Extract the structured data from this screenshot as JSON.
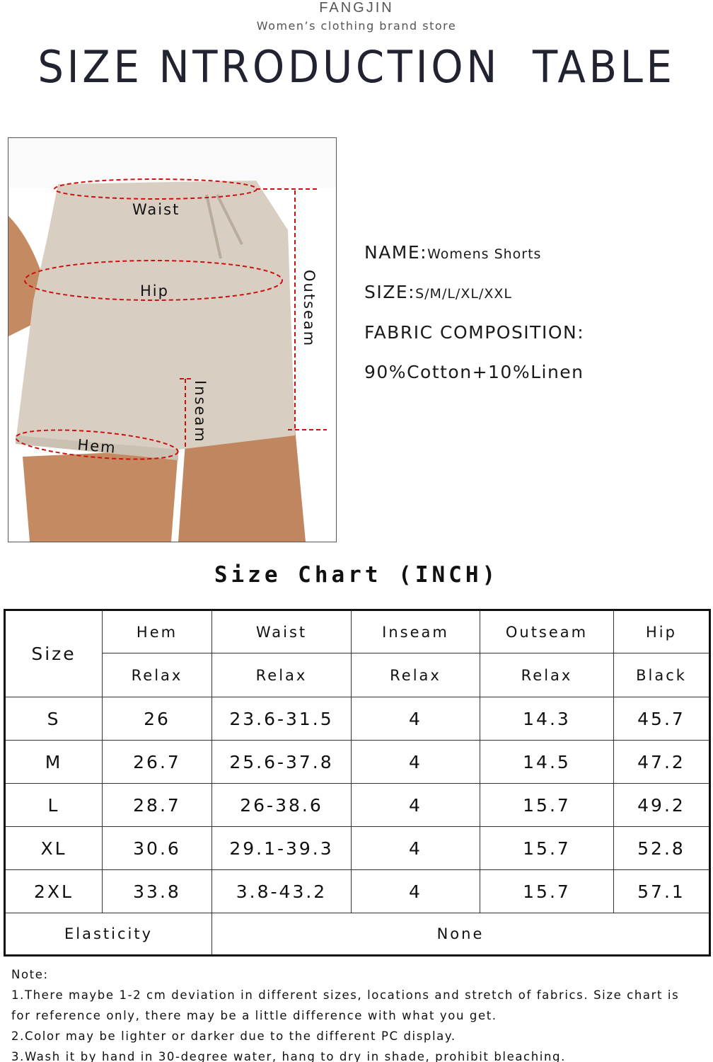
{
  "header": {
    "brand": "FANGJIN",
    "tagline": "Women’s clothing brand store",
    "title": "SIZE NTRODUCTION  TABLE"
  },
  "diagram": {
    "labels": {
      "waist": "Waist",
      "hip": "Hip",
      "outseam": "Outseam",
      "inseam": "Inseam",
      "hem": "Hem"
    },
    "colors": {
      "measure_line": "#cc1111",
      "fabric": "#d8cfc2",
      "skin": "#c48a62"
    }
  },
  "product": {
    "name_label": "NAME:",
    "name_value": "Womens Shorts",
    "size_label": "SIZE:",
    "size_value": "S/M/L/XL/XXL",
    "fabric_label": "FABRIC COMPOSITION:",
    "fabric_value": "90%Cotton+10%Linen"
  },
  "size_chart": {
    "title": "Size Chart (INCH)",
    "size_header": "Size",
    "columns": [
      {
        "name": "Hem",
        "sub": "Relax"
      },
      {
        "name": "Waist",
        "sub": "Relax"
      },
      {
        "name": "Inseam",
        "sub": "Relax"
      },
      {
        "name": "Outseam",
        "sub": "Relax"
      },
      {
        "name": "Hip",
        "sub": "Black"
      }
    ],
    "rows": [
      {
        "size": "S",
        "values": [
          "26",
          "23.6-31.5",
          "4",
          "14.3",
          "45.7"
        ]
      },
      {
        "size": "M",
        "values": [
          "26.7",
          "25.6-37.8",
          "4",
          "14.5",
          "47.2"
        ]
      },
      {
        "size": "L",
        "values": [
          "28.7",
          "26-38.6",
          "4",
          "15.7",
          "49.2"
        ]
      },
      {
        "size": "XL",
        "values": [
          "30.6",
          "29.1-39.3",
          "4",
          "15.7",
          "52.8"
        ]
      },
      {
        "size": "2XL",
        "values": [
          "33.8",
          "3.8-43.2",
          "4",
          "15.7",
          "57.1"
        ]
      }
    ],
    "elasticity_label": "Elasticity",
    "elasticity_value": "None"
  },
  "notes": {
    "heading": "Note:",
    "lines": [
      "1.There maybe 1-2 cm deviation in different sizes, locations and stretch of fabrics. Size chart is",
      "for reference only, there may be a little difference with what you get.",
      "2.Color may be lighter or darker due to the different PC display.",
      "3.Wash it by hand in 30-degree water, hang to dry in shade, prohibit bleaching."
    ]
  }
}
